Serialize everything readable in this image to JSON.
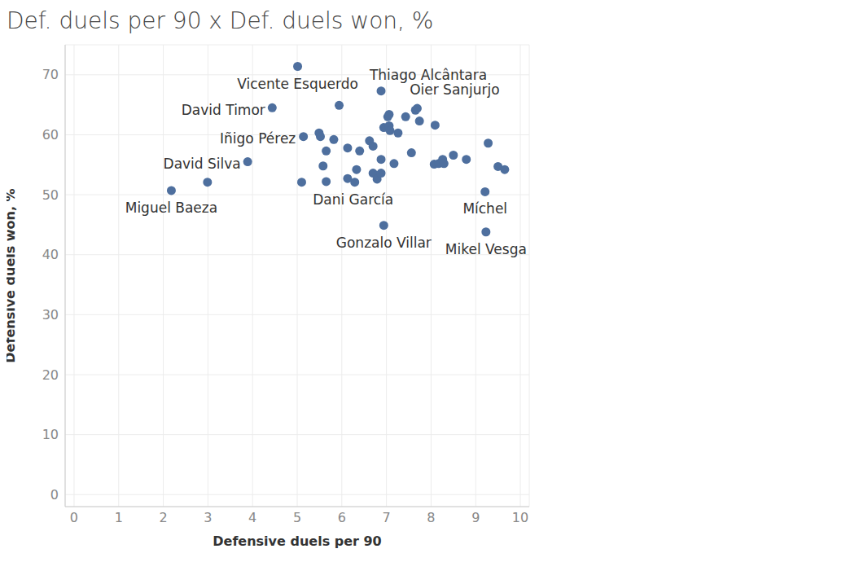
{
  "chart_data": {
    "type": "scatter",
    "title": "Def. duels per 90 x Def. duels won, %",
    "x_label": "Defensive duels per 90",
    "y_label": "Defensive duels won, %",
    "color": "#4e6f9e",
    "grid": true,
    "marker": "circle",
    "xlim": [
      -0.2,
      10.2
    ],
    "ylim": [
      -2,
      75
    ],
    "xticks": [
      0,
      1,
      2,
      3,
      4,
      5,
      6,
      7,
      8,
      9,
      10
    ],
    "yticks": [
      0,
      10,
      20,
      30,
      40,
      50,
      60,
      70
    ],
    "x": [
      5.01,
      4.44,
      6.88,
      7.69,
      5.14,
      3.89,
      2.18,
      6.29,
      6.94,
      9.21,
      9.23,
      2.99,
      5.94,
      5.1,
      5.49,
      5.52,
      5.65,
      5.58,
      5.65,
      5.82,
      6.13,
      6.4,
      6.62,
      6.7,
      6.13,
      6.33,
      6.7,
      6.79,
      6.88,
      6.88,
      6.94,
      7.03,
      7.06,
      7.06,
      7.08,
      7.26,
      7.17,
      7.43,
      7.56,
      7.65,
      7.74,
      8.09,
      8.07,
      8.17,
      8.26,
      8.29,
      8.5,
      8.79,
      9.28,
      9.5,
      9.65
    ],
    "y": [
      71.4,
      64.5,
      67.3,
      64.4,
      59.7,
      55.5,
      50.7,
      52.1,
      44.9,
      50.5,
      43.8,
      52.1,
      64.9,
      52.1,
      60.3,
      59.7,
      57.3,
      54.8,
      52.2,
      59.2,
      57.8,
      57.3,
      59.0,
      58.1,
      52.7,
      54.2,
      53.6,
      52.6,
      53.6,
      55.9,
      61.2,
      63.0,
      63.4,
      61.5,
      60.7,
      60.3,
      55.2,
      63.0,
      57.0,
      64.1,
      62.3,
      61.6,
      55.1,
      55.2,
      55.9,
      55.2,
      56.6,
      55.9,
      58.6,
      54.7,
      54.2
    ],
    "labels": [
      "Vicente Esquerdo",
      "David Timor",
      "Thiago Alcântara",
      "Oier Sanjurjo",
      "Iñigo Pérez",
      "David Silva",
      "Miguel Baeza",
      "Dani García",
      "Gonzalo Villar",
      "Míchel",
      "Mikel Vesga",
      null,
      null,
      null,
      null,
      null,
      null,
      null,
      null,
      null,
      null,
      null,
      null,
      null,
      null,
      null,
      null,
      null,
      null,
      null,
      null,
      null,
      null,
      null,
      null,
      null,
      null,
      null,
      null,
      null,
      null,
      null,
      null,
      null,
      null,
      null,
      null,
      null,
      null,
      null,
      null
    ]
  }
}
